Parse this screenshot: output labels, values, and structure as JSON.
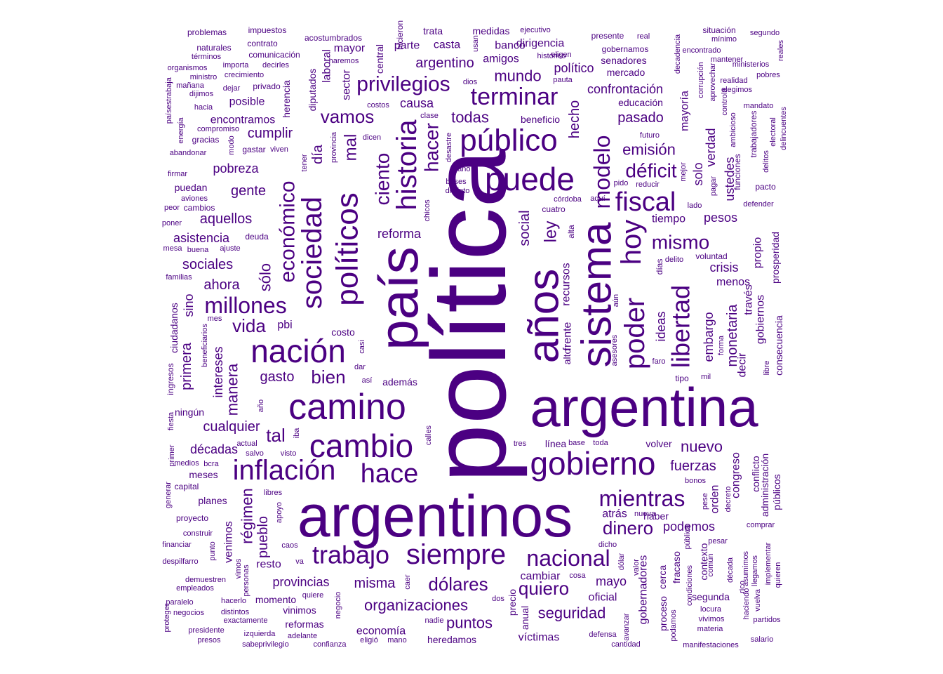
{
  "word_cloud": {
    "color": "#4b0082",
    "words": [
      {
        "text": "política"
      },
      {
        "text": "argentinos"
      },
      {
        "text": "argentina"
      },
      {
        "text": "país"
      },
      {
        "text": "años"
      },
      {
        "text": "sistema"
      },
      {
        "text": "camino"
      },
      {
        "text": "nación"
      },
      {
        "text": "cambio"
      },
      {
        "text": "gobierno"
      },
      {
        "text": "puede"
      },
      {
        "text": "inflación"
      },
      {
        "text": "público"
      },
      {
        "text": "políticos"
      },
      {
        "text": "sociedad"
      },
      {
        "text": "historia"
      },
      {
        "text": "poder"
      },
      {
        "text": "hoy"
      },
      {
        "text": "hace"
      },
      {
        "text": "siempre"
      },
      {
        "text": "trabajo"
      },
      {
        "text": "fiscal"
      },
      {
        "text": "mientras"
      },
      {
        "text": "libertad"
      },
      {
        "text": "nacional"
      },
      {
        "text": "terminar"
      },
      {
        "text": "modelo"
      },
      {
        "text": "económico"
      },
      {
        "text": "privilegios"
      },
      {
        "text": "millones"
      },
      {
        "text": "ciento"
      },
      {
        "text": "hacer"
      },
      {
        "text": "dólares"
      },
      {
        "text": "déficit"
      },
      {
        "text": "dinero"
      },
      {
        "text": "quiero"
      },
      {
        "text": "mismo"
      },
      {
        "text": "vida"
      },
      {
        "text": "bien"
      },
      {
        "text": "emisión"
      },
      {
        "text": "mal"
      },
      {
        "text": "ley"
      },
      {
        "text": "vamos"
      },
      {
        "text": "tal"
      },
      {
        "text": "seguridad"
      },
      {
        "text": "organizaciones"
      },
      {
        "text": "puntos"
      },
      {
        "text": "todas"
      },
      {
        "text": "sólo"
      },
      {
        "text": "hecho"
      },
      {
        "text": "fuerzas"
      },
      {
        "text": "nuevo"
      },
      {
        "text": "mundo"
      },
      {
        "text": "pasado"
      },
      {
        "text": "social"
      },
      {
        "text": "embargo"
      },
      {
        "text": "argentino"
      },
      {
        "text": "aquellos"
      },
      {
        "text": "sociales"
      },
      {
        "text": "pobreza"
      },
      {
        "text": "gente"
      },
      {
        "text": "cumplir"
      },
      {
        "text": "día"
      },
      {
        "text": "manera"
      },
      {
        "text": "régimen"
      },
      {
        "text": "pueblo"
      },
      {
        "text": "misma"
      },
      {
        "text": "ideas"
      },
      {
        "text": "crisis"
      },
      {
        "text": "podemos"
      },
      {
        "text": "monetaria"
      },
      {
        "text": "pesos"
      },
      {
        "text": "solo"
      },
      {
        "text": "ahora"
      },
      {
        "text": "gasto"
      },
      {
        "text": "reforma"
      },
      {
        "text": "causa"
      },
      {
        "text": "cualquier"
      },
      {
        "text": "intereses"
      },
      {
        "text": "décadas"
      },
      {
        "text": "provincias"
      },
      {
        "text": "primera"
      },
      {
        "text": "asistencia"
      },
      {
        "text": "político"
      },
      {
        "text": "confrontación"
      },
      {
        "text": "tiempo"
      },
      {
        "text": "verdad"
      },
      {
        "text": "mayoría"
      },
      {
        "text": "ustedes"
      },
      {
        "text": "gobiernos"
      },
      {
        "text": "través"
      },
      {
        "text": "decir"
      },
      {
        "text": "propio"
      },
      {
        "text": "menos"
      },
      {
        "text": "mayo"
      },
      {
        "text": "oficial"
      },
      {
        "text": "gobernadores"
      },
      {
        "text": "orden"
      },
      {
        "text": "congreso"
      },
      {
        "text": "recursos"
      },
      {
        "text": "frente"
      },
      {
        "text": "sino"
      },
      {
        "text": "pbi"
      },
      {
        "text": "resto"
      },
      {
        "text": "economía"
      },
      {
        "text": "víctimas"
      },
      {
        "text": "cambiar"
      },
      {
        "text": "atrás"
      },
      {
        "text": "venimos"
      },
      {
        "text": "banco"
      },
      {
        "text": "dirigencia"
      },
      {
        "text": "amigos"
      },
      {
        "text": "casta"
      },
      {
        "text": "parte"
      },
      {
        "text": "mayor"
      },
      {
        "text": "educación"
      },
      {
        "text": "encontramos"
      },
      {
        "text": "posible"
      },
      {
        "text": "herencia"
      },
      {
        "text": "diputados"
      },
      {
        "text": "sector"
      },
      {
        "text": "laboral"
      },
      {
        "text": "central"
      },
      {
        "text": "mercado"
      },
      {
        "text": "senadores"
      },
      {
        "text": "medidas"
      },
      {
        "text": "trata"
      },
      {
        "text": "costo"
      },
      {
        "text": "además"
      },
      {
        "text": "cerca"
      },
      {
        "text": "fracaso"
      },
      {
        "text": "contexto"
      },
      {
        "text": "momento"
      },
      {
        "text": "reformas"
      },
      {
        "text": "vinimos"
      },
      {
        "text": "heredamos"
      },
      {
        "text": "precio"
      },
      {
        "text": "anual"
      },
      {
        "text": "proceso"
      },
      {
        "text": "segunda"
      },
      {
        "text": "puedan"
      },
      {
        "text": "ningún"
      },
      {
        "text": "meses"
      },
      {
        "text": "planes"
      },
      {
        "text": "volver"
      },
      {
        "text": "haber"
      },
      {
        "text": "línea"
      },
      {
        "text": "alto"
      },
      {
        "text": "ciudadanos"
      },
      {
        "text": "ingresos"
      },
      {
        "text": "conflicto"
      },
      {
        "text": "administración"
      },
      {
        "text": "públicos"
      },
      {
        "text": "prosperidad"
      },
      {
        "text": "consecuencia"
      },
      {
        "text": "días"
      },
      {
        "text": "beneficio"
      },
      {
        "text": "presente"
      },
      {
        "text": "gobernamos"
      },
      {
        "text": "cuatro"
      },
      {
        "text": "alta"
      },
      {
        "text": "deuda"
      },
      {
        "text": "proyecto"
      },
      {
        "text": "capital"
      },
      {
        "text": "cambios"
      },
      {
        "text": "gastar"
      },
      {
        "text": "gracias"
      },
      {
        "text": "privado"
      },
      {
        "text": "naturales"
      },
      {
        "text": "problemas"
      },
      {
        "text": "impuestos"
      },
      {
        "text": "contrato"
      },
      {
        "text": "comunicación"
      },
      {
        "text": "acostumbrados"
      },
      {
        "text": "hicieron"
      },
      {
        "text": "ejecutivo"
      },
      {
        "text": "real"
      },
      {
        "text": "situación"
      },
      {
        "text": "segundo"
      },
      {
        "text": "mínimo"
      },
      {
        "text": "encontrado"
      },
      {
        "text": "mantener"
      },
      {
        "text": "ministerios"
      },
      {
        "text": "realidad"
      },
      {
        "text": "elegimos"
      },
      {
        "text": "pobres"
      },
      {
        "text": "mandato"
      },
      {
        "text": "pacto"
      },
      {
        "text": "defender"
      },
      {
        "text": "trabajadores"
      },
      {
        "text": "funciones"
      },
      {
        "text": "lado"
      },
      {
        "text": "pagar"
      },
      {
        "text": "voluntad"
      },
      {
        "text": "delito"
      },
      {
        "text": "bonos"
      },
      {
        "text": "decreto"
      },
      {
        "text": "pesar"
      },
      {
        "text": "comprar"
      },
      {
        "text": "implementar"
      },
      {
        "text": "quieren"
      },
      {
        "text": "llegamos"
      },
      {
        "text": "asumimos"
      },
      {
        "text": "rico"
      },
      {
        "text": "haciendo"
      },
      {
        "text": "vuelva"
      },
      {
        "text": "partidos"
      },
      {
        "text": "salario"
      },
      {
        "text": "manifestaciones"
      },
      {
        "text": "materia"
      },
      {
        "text": "vivimos"
      },
      {
        "text": "locura"
      },
      {
        "text": "condiciones"
      },
      {
        "text": "podamos"
      },
      {
        "text": "cantidad"
      },
      {
        "text": "defensa"
      },
      {
        "text": "avanzar"
      },
      {
        "text": "dólar"
      },
      {
        "text": "dicho"
      },
      {
        "text": "valor"
      },
      {
        "text": "nueva"
      },
      {
        "text": "cosa"
      },
      {
        "text": "dos"
      },
      {
        "text": "nadie"
      },
      {
        "text": "mano"
      },
      {
        "text": "eligió"
      },
      {
        "text": "confianza"
      },
      {
        "text": "adelante"
      },
      {
        "text": "privilegio"
      },
      {
        "text": "sabe"
      },
      {
        "text": "izquierda"
      },
      {
        "text": "presos"
      },
      {
        "text": "presidente"
      },
      {
        "text": "exactamente"
      },
      {
        "text": "distintos"
      },
      {
        "text": "negocios"
      },
      {
        "text": "proteger"
      },
      {
        "text": "paralelo"
      },
      {
        "text": "hacerlo"
      },
      {
        "text": "quiere"
      },
      {
        "text": "negocio"
      },
      {
        "text": "caer"
      },
      {
        "text": "empleados"
      },
      {
        "text": "demuestren"
      },
      {
        "text": "despilfarro"
      },
      {
        "text": "financiar"
      },
      {
        "text": "construir"
      },
      {
        "text": "punto"
      },
      {
        "text": "vimos"
      },
      {
        "text": "personas"
      },
      {
        "text": "caos"
      },
      {
        "text": "va"
      },
      {
        "text": "apoyo"
      },
      {
        "text": "libres"
      },
      {
        "text": "generar"
      },
      {
        "text": "medios"
      },
      {
        "text": "bcra"
      },
      {
        "text": "salvo"
      },
      {
        "text": "visto"
      },
      {
        "text": "actual"
      },
      {
        "text": "iba"
      },
      {
        "text": "calles"
      },
      {
        "text": "primer"
      },
      {
        "text": "fiesta"
      },
      {
        "text": "año"
      },
      {
        "text": "así"
      },
      {
        "text": "dar"
      },
      {
        "text": "casi"
      },
      {
        "text": "beneficiarios"
      },
      {
        "text": "mes"
      },
      {
        "text": "familias"
      },
      {
        "text": "mesa"
      },
      {
        "text": "buena"
      },
      {
        "text": "ajuste"
      },
      {
        "text": "poner"
      },
      {
        "text": "peor"
      },
      {
        "text": "aviones"
      },
      {
        "text": "firmar"
      },
      {
        "text": "abandonar"
      },
      {
        "text": "viven"
      },
      {
        "text": "modo"
      },
      {
        "text": "energía"
      },
      {
        "text": "países"
      },
      {
        "text": "trabaja"
      },
      {
        "text": "compromiso"
      },
      {
        "text": "hacia"
      },
      {
        "text": "dijimos"
      },
      {
        "text": "mañana"
      },
      {
        "text": "ministro"
      },
      {
        "text": "organismos"
      },
      {
        "text": "términos"
      },
      {
        "text": "importa"
      },
      {
        "text": "decirles"
      },
      {
        "text": "crecimiento"
      },
      {
        "text": "dejar"
      },
      {
        "text": "haremos"
      },
      {
        "text": "usan"
      },
      {
        "text": "dios"
      },
      {
        "text": "pauta"
      },
      {
        "text": "histórico"
      },
      {
        "text": "eligen"
      },
      {
        "text": "costos"
      },
      {
        "text": "clase"
      },
      {
        "text": "dicen"
      },
      {
        "text": "provincia"
      },
      {
        "text": "desastre"
      },
      {
        "text": "tener"
      },
      {
        "text": "plano"
      },
      {
        "text": "bases"
      },
      {
        "text": "distinto"
      },
      {
        "text": "chicos"
      },
      {
        "text": "córdoba"
      },
      {
        "text": "aquí"
      },
      {
        "text": "pido"
      },
      {
        "text": "reducir"
      },
      {
        "text": "mejor"
      },
      {
        "text": "futuro"
      },
      {
        "text": "aún"
      },
      {
        "text": "asesores"
      },
      {
        "text": "faro"
      },
      {
        "text": "forma"
      },
      {
        "text": "tipo"
      },
      {
        "text": "mil"
      },
      {
        "text": "libre"
      },
      {
        "text": "base"
      },
      {
        "text": "toda"
      },
      {
        "text": "tres"
      },
      {
        "text": "pública"
      },
      {
        "text": "común"
      },
      {
        "text": "década"
      },
      {
        "text": "pese"
      },
      {
        "text": "decadencia"
      },
      {
        "text": "corrupción"
      },
      {
        "text": "aprovechar"
      },
      {
        "text": "controla"
      },
      {
        "text": "ambicioso"
      },
      {
        "text": "electoral"
      },
      {
        "text": "delincuentes"
      },
      {
        "text": "delitos"
      },
      {
        "text": "reales"
      }
    ]
  }
}
